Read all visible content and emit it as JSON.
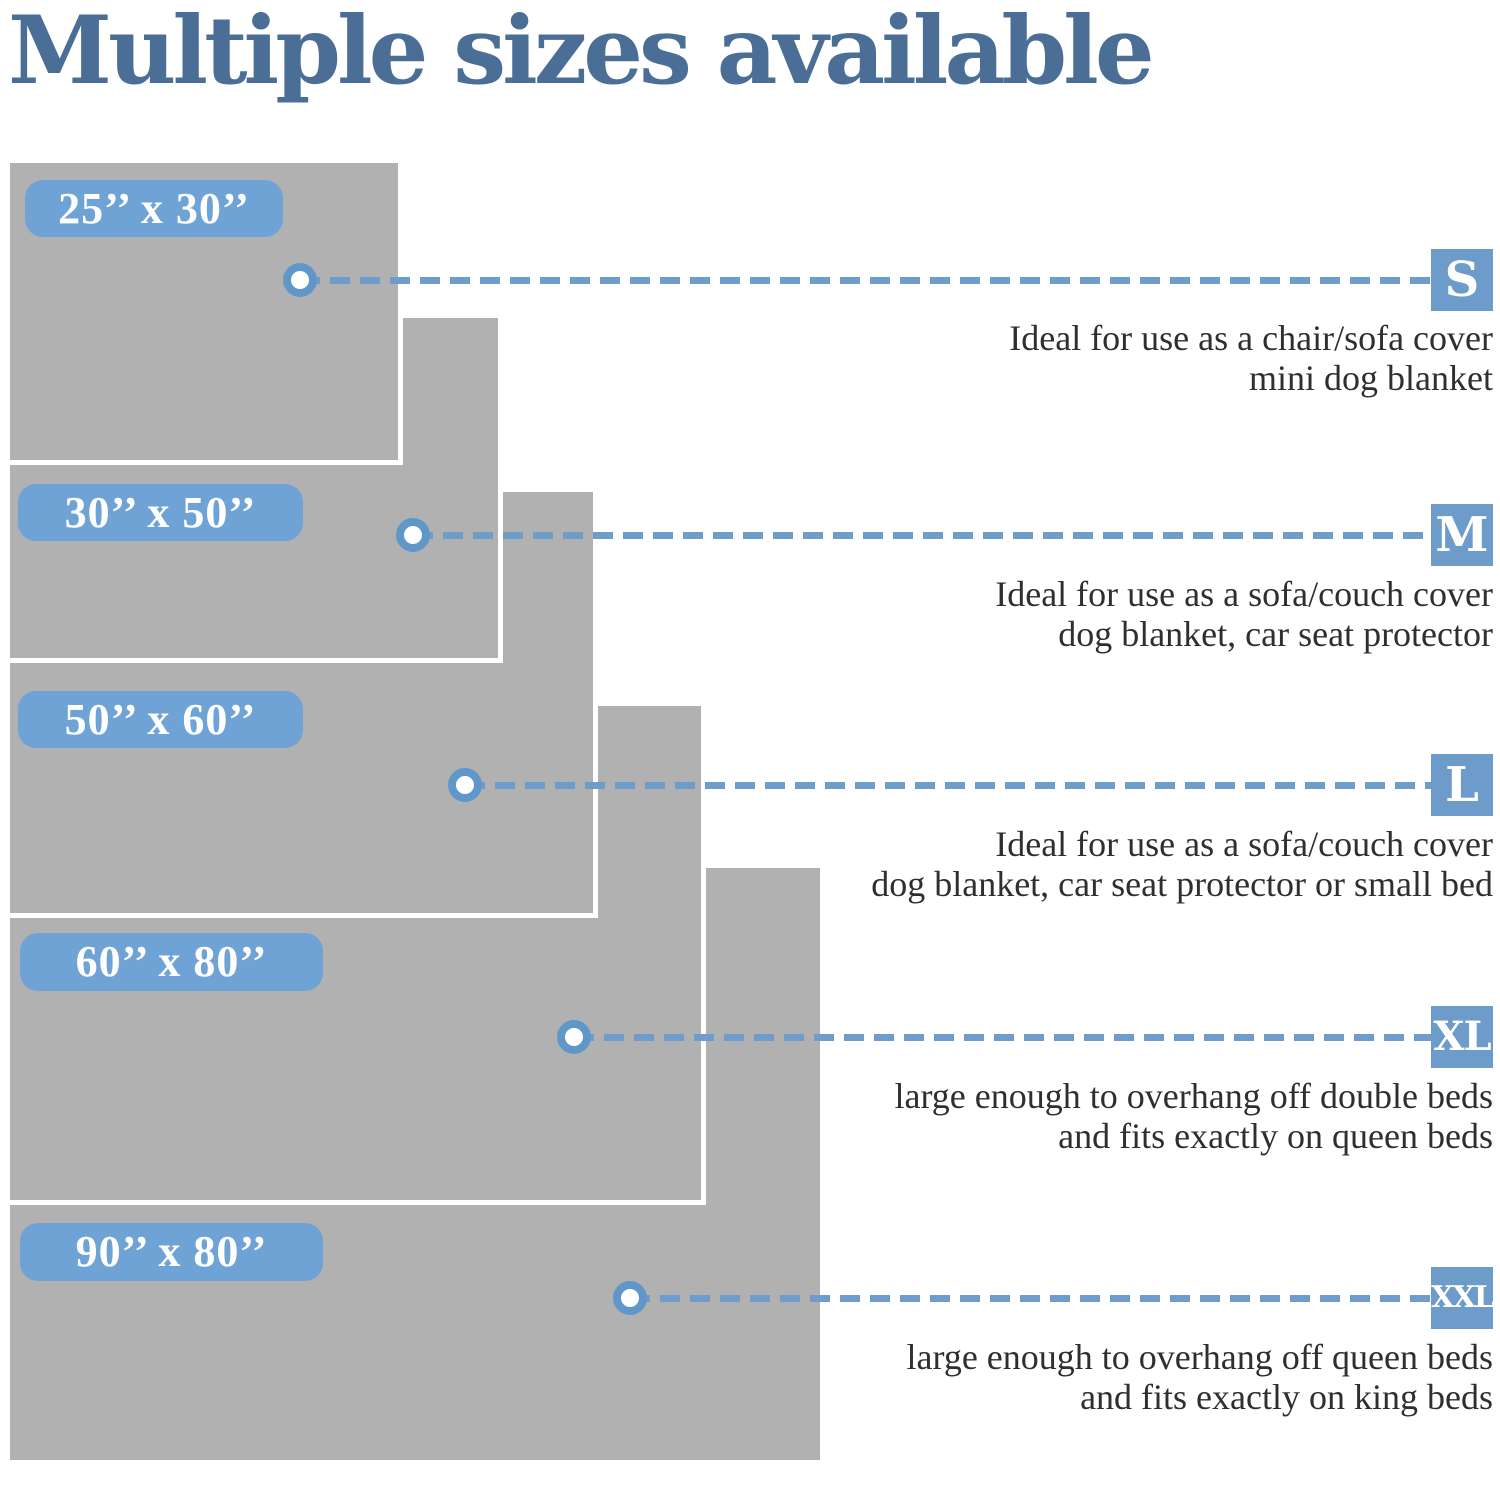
{
  "title": "Multiple sizes available",
  "colors": {
    "title_blue": "#4b6e97",
    "accent_blue": "#6f9dcb",
    "label_blue": "#6fa2d5",
    "badge_blue": "#6d9cca",
    "swatch_gray": "#b1b1b1",
    "text_dark": "#2f2f2f"
  },
  "sizes": [
    {
      "code": "S",
      "dimensions": "25’’ x 30’’",
      "description_line1": "Ideal for use as a chair/sofa cover",
      "description_line2": "mini dog blanket"
    },
    {
      "code": "M",
      "dimensions": "30’’ x 50’’",
      "description_line1": "Ideal for use as a sofa/couch cover",
      "description_line2": "dog blanket, car seat protector"
    },
    {
      "code": "L",
      "dimensions": "50’’ x 60’’",
      "description_line1": "Ideal for use as a sofa/couch cover",
      "description_line2": "dog blanket, car seat protector or small bed"
    },
    {
      "code": "XL",
      "dimensions": "60’’ x 80’’",
      "description_line1": "large enough to overhang off double beds",
      "description_line2": "and fits exactly on queen beds"
    },
    {
      "code": "XXL",
      "dimensions": "90’’ x 80’’",
      "description_line1": "large enough to overhang off queen beds",
      "description_line2": "and fits exactly on king beds"
    }
  ]
}
